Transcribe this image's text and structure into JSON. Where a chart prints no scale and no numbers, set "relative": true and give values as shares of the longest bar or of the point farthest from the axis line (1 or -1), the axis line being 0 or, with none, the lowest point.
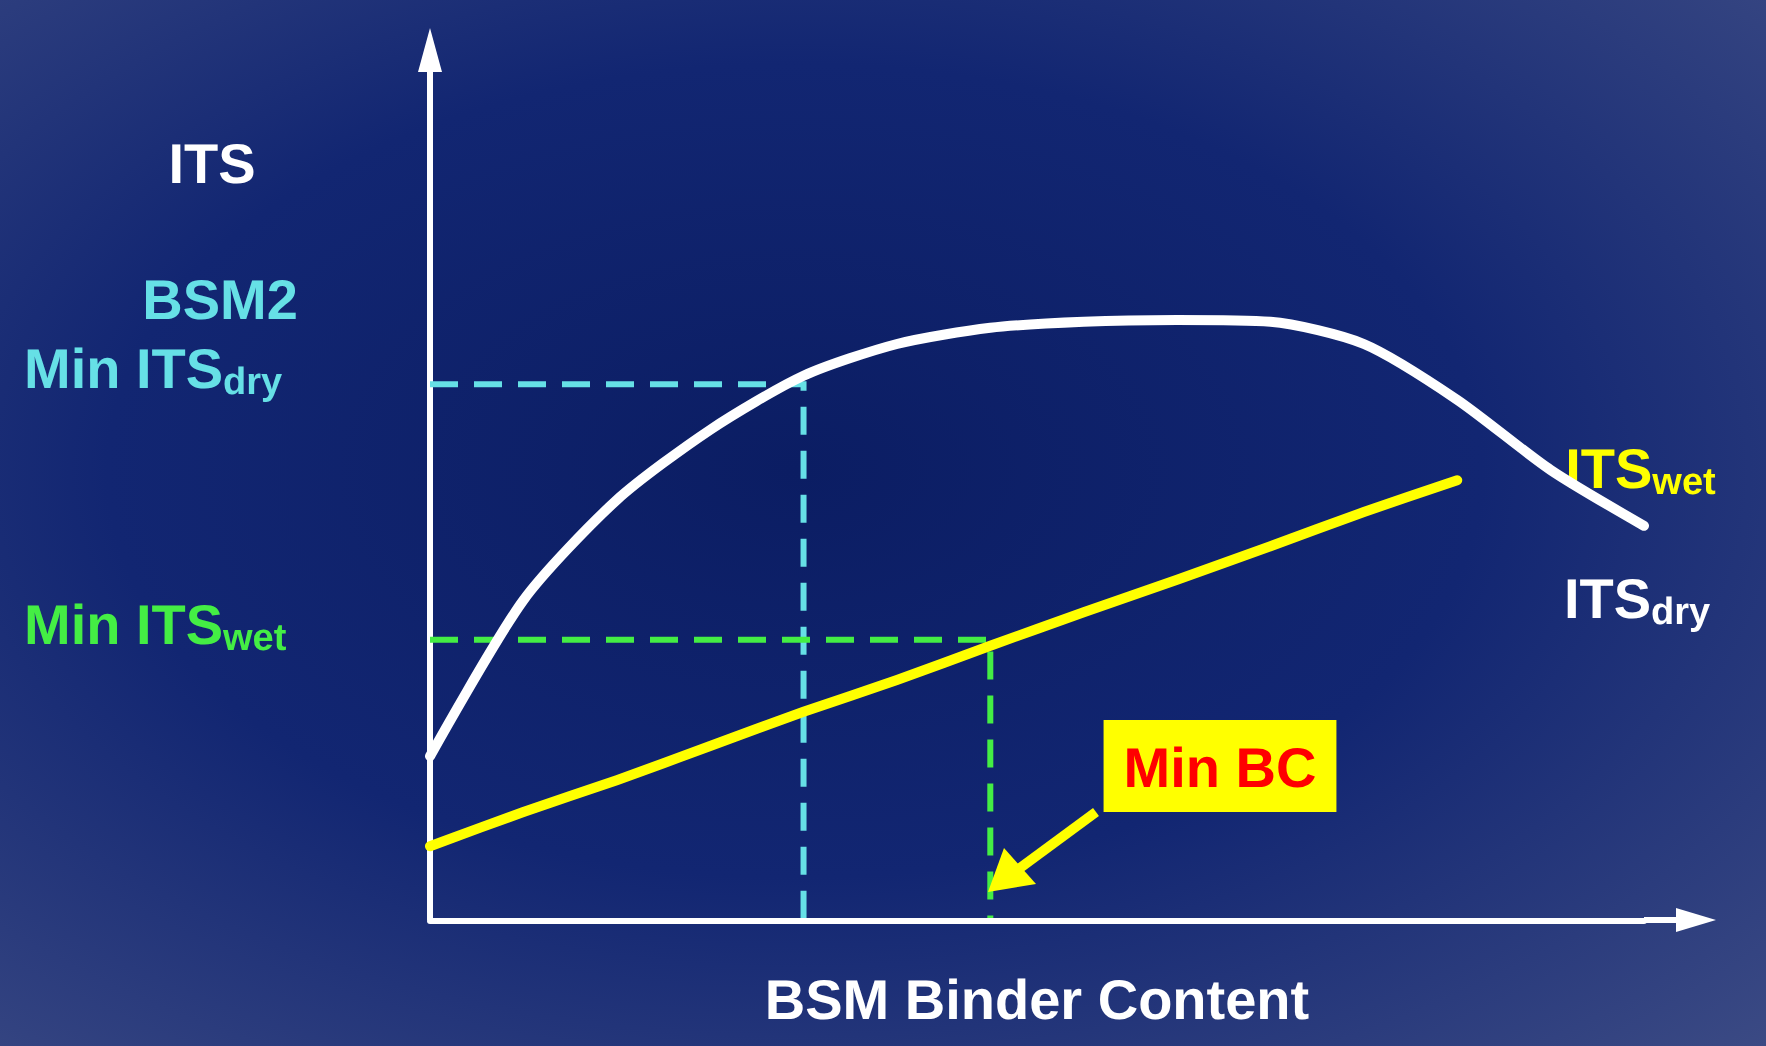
{
  "chart_data": {
    "type": "line",
    "relative": true,
    "xlabel": "BSM Binder Content",
    "ylabel": "ITS",
    "categories": [
      null,
      null,
      null,
      null,
      null,
      null,
      null,
      null,
      null,
      null,
      null,
      null,
      null,
      null
    ],
    "series": [
      {
        "name": "ITS$_{dry}$",
        "color": "#ffffff",
        "values": [
          0.273,
          0.533,
          0.7,
          0.817,
          0.907,
          0.96,
          0.987,
          0.997,
          1,
          0.997,
          0.96,
          0.867,
          0.75,
          0.657
        ]
      },
      {
        "name": "ITS$_{wet}$",
        "color": "#ffff00",
        "values": [
          0.123,
          0.18,
          0.233,
          0.29,
          0.347,
          0.4,
          0.457,
          0.513,
          0.567,
          0.623,
          0.68,
          0.733,
          null,
          null
        ]
      }
    ],
    "ref_lines": [
      {
        "axis": "y",
        "value": 0.893,
        "label": "Min ITS$_{dry}$",
        "color": "#66e0e6",
        "line_style": "dashed"
      },
      {
        "axis": "y",
        "value": 0.467,
        "label": "Min ITS$_{wet}$",
        "color": "#44ee44",
        "line_style": "dashed"
      }
    ],
    "annotations": [
      "BSM2",
      "Min BC"
    ],
    "legend": false,
    "grid": false,
    "marker": "none",
    "line_style": "solid"
  }
}
